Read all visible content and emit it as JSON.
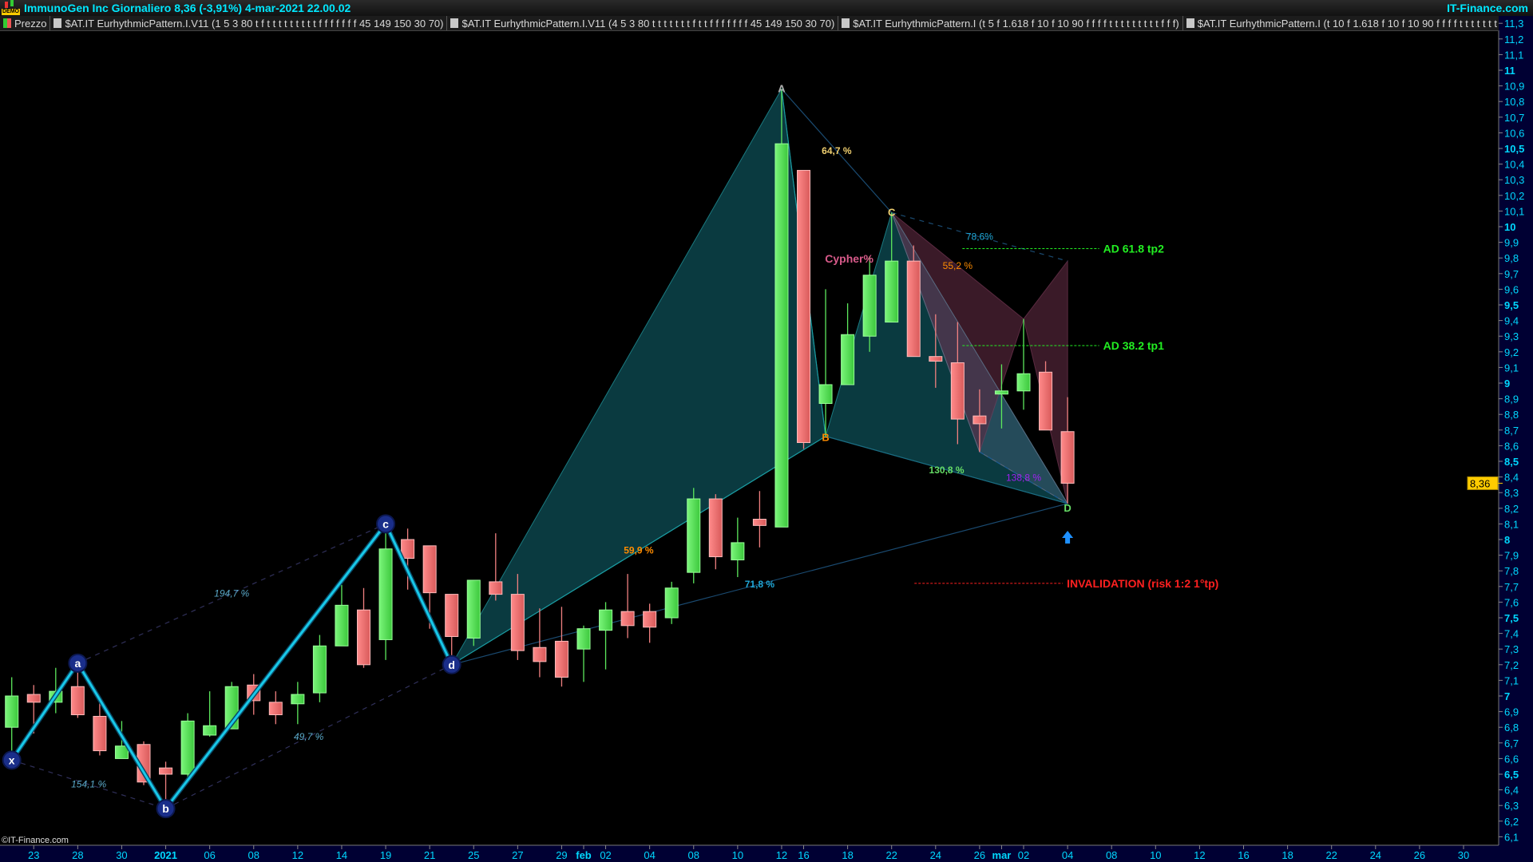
{
  "header": {
    "logo_text": "DEMO",
    "title": "ImmunoGen Inc Giornaliero 8,36 (-3,91%) 4-mar-2021 22.00.02",
    "brand": "IT-Finance.com"
  },
  "legend": [
    {
      "label": "Prezzo",
      "type": "price"
    },
    {
      "label": "$AT.IT EurhythmicPattern.I.V11 (1 5 3 80 t f t t t t t t t t t f f f f f f f 45 149 150 30 70)"
    },
    {
      "label": "$AT.IT EurhythmicPattern.I.V11 (4 5 3 80 t t t t t t t f t t f f f f f f f 45 149 150 30 70)"
    },
    {
      "label": "$AT.IT EurhythmicPattern.I (t 5 f 1.618 f 10 f 10 90 f f f f t t t t t t t t t f f f)"
    },
    {
      "label": "$AT.IT EurhythmicPattern.I (t 10 f 1.618 f 10 f 10 90 f f f f t t t t t t t t"
    }
  ],
  "watermark": "©IT-Finance.com",
  "colors": {
    "up": "#5de85d",
    "down": "#f08080",
    "axis_text": "#00d8ff",
    "axis_bg": "#000033",
    "zigzag": "#18c8e8",
    "cypher_fill": "#0a3a40",
    "pink_fill": "#3a1a28",
    "tp": "#22ee22",
    "invalidation": "#ff2020",
    "arrow": "#1e90ff",
    "last_price": "#ffcc00"
  },
  "chart_data": {
    "type": "candlestick",
    "ylim": [
      6.1,
      11.3
    ],
    "yticks": {
      "min": 6.1,
      "max": 11.3,
      "step": 0.1,
      "major": 0.5
    },
    "grid": false,
    "last_price": "8,36",
    "last_price_value": 8.36,
    "xticks": [
      {
        "label": "23",
        "date": "2020-12-23"
      },
      {
        "label": "28",
        "date": "2020-12-28"
      },
      {
        "label": "30",
        "date": "2020-12-30"
      },
      {
        "label": "2021",
        "date": "2021-01-04",
        "bold": true
      },
      {
        "label": "06",
        "date": "2021-01-06"
      },
      {
        "label": "08",
        "date": "2021-01-08"
      },
      {
        "label": "12",
        "date": "2021-01-12"
      },
      {
        "label": "14",
        "date": "2021-01-14"
      },
      {
        "label": "19",
        "date": "2021-01-19"
      },
      {
        "label": "21",
        "date": "2021-01-21"
      },
      {
        "label": "25",
        "date": "2021-01-25"
      },
      {
        "label": "27",
        "date": "2021-01-27"
      },
      {
        "label": "29",
        "date": "2021-01-29"
      },
      {
        "label": "feb",
        "date": "2021-02-01",
        "bold": true
      },
      {
        "label": "02",
        "date": "2021-02-02"
      },
      {
        "label": "04",
        "date": "2021-02-04"
      },
      {
        "label": "08",
        "date": "2021-02-08"
      },
      {
        "label": "10",
        "date": "2021-02-10"
      },
      {
        "label": "12",
        "date": "2021-02-12"
      },
      {
        "label": "16",
        "date": "2021-02-16"
      },
      {
        "label": "18",
        "date": "2021-02-18"
      },
      {
        "label": "22",
        "date": "2021-02-22"
      },
      {
        "label": "24",
        "date": "2021-02-24"
      },
      {
        "label": "26",
        "date": "2021-02-26"
      },
      {
        "label": "mar",
        "date": "2021-03-01",
        "bold": true
      },
      {
        "label": "02",
        "date": "2021-03-02"
      },
      {
        "label": "04",
        "date": "2021-03-04"
      },
      {
        "label": "08",
        "date": "2021-03-08"
      },
      {
        "label": "10",
        "date": "2021-03-10"
      },
      {
        "label": "12",
        "date": "2021-03-12"
      },
      {
        "label": "16",
        "date": "2021-03-16"
      },
      {
        "label": "18",
        "date": "2021-03-18"
      },
      {
        "label": "22",
        "date": "2021-03-22"
      },
      {
        "label": "24",
        "date": "2021-03-24"
      },
      {
        "label": "26",
        "date": "2021-03-26"
      },
      {
        "label": "30",
        "date": "2021-03-30"
      }
    ],
    "candles": [
      {
        "date": "2020-12-22",
        "o": 6.8,
        "h": 7.12,
        "l": 6.59,
        "c": 7.0
      },
      {
        "date": "2020-12-23",
        "o": 7.01,
        "h": 7.07,
        "l": 6.76,
        "c": 6.96
      },
      {
        "date": "2020-12-24",
        "o": 6.96,
        "h": 7.18,
        "l": 6.89,
        "c": 7.03
      },
      {
        "date": "2020-12-28",
        "o": 7.06,
        "h": 7.21,
        "l": 6.86,
        "c": 6.88
      },
      {
        "date": "2020-12-29",
        "o": 6.87,
        "h": 6.97,
        "l": 6.62,
        "c": 6.65
      },
      {
        "date": "2020-12-30",
        "o": 6.6,
        "h": 6.84,
        "l": 6.6,
        "c": 6.68
      },
      {
        "date": "2020-12-31",
        "o": 6.69,
        "h": 6.71,
        "l": 6.43,
        "c": 6.45
      },
      {
        "date": "2021-01-04",
        "o": 6.54,
        "h": 6.58,
        "l": 6.28,
        "c": 6.5
      },
      {
        "date": "2021-01-05",
        "o": 6.5,
        "h": 6.89,
        "l": 6.45,
        "c": 6.84
      },
      {
        "date": "2021-01-06",
        "o": 6.75,
        "h": 7.03,
        "l": 6.74,
        "c": 6.81
      },
      {
        "date": "2021-01-07",
        "o": 6.79,
        "h": 7.09,
        "l": 6.79,
        "c": 7.06
      },
      {
        "date": "2021-01-08",
        "o": 7.07,
        "h": 7.14,
        "l": 6.88,
        "c": 6.97
      },
      {
        "date": "2021-01-11",
        "o": 6.96,
        "h": 7.03,
        "l": 6.82,
        "c": 6.88
      },
      {
        "date": "2021-01-12",
        "o": 6.95,
        "h": 7.09,
        "l": 6.82,
        "c": 7.01
      },
      {
        "date": "2021-01-13",
        "o": 7.02,
        "h": 7.39,
        "l": 6.96,
        "c": 7.32
      },
      {
        "date": "2021-01-14",
        "o": 7.32,
        "h": 7.71,
        "l": 7.32,
        "c": 7.58
      },
      {
        "date": "2021-01-15",
        "o": 7.55,
        "h": 7.69,
        "l": 7.18,
        "c": 7.2
      },
      {
        "date": "2021-01-19",
        "o": 7.36,
        "h": 8.1,
        "l": 7.23,
        "c": 7.94
      },
      {
        "date": "2021-01-20",
        "o": 8.0,
        "h": 8.07,
        "l": 7.68,
        "c": 7.88
      },
      {
        "date": "2021-01-21",
        "o": 7.96,
        "h": 7.96,
        "l": 7.43,
        "c": 7.66
      },
      {
        "date": "2021-01-22",
        "o": 7.65,
        "h": 7.65,
        "l": 7.2,
        "c": 7.38
      },
      {
        "date": "2021-01-25",
        "o": 7.37,
        "h": 7.74,
        "l": 7.32,
        "c": 7.74
      },
      {
        "date": "2021-01-26",
        "o": 7.73,
        "h": 8.04,
        "l": 7.61,
        "c": 7.65
      },
      {
        "date": "2021-01-27",
        "o": 7.65,
        "h": 7.78,
        "l": 7.23,
        "c": 7.29
      },
      {
        "date": "2021-01-28",
        "o": 7.31,
        "h": 7.56,
        "l": 7.12,
        "c": 7.22
      },
      {
        "date": "2021-01-29",
        "o": 7.35,
        "h": 7.57,
        "l": 7.06,
        "c": 7.12
      },
      {
        "date": "2021-02-01",
        "o": 7.3,
        "h": 7.45,
        "l": 7.09,
        "c": 7.43
      },
      {
        "date": "2021-02-02",
        "o": 7.42,
        "h": 7.6,
        "l": 7.17,
        "c": 7.55
      },
      {
        "date": "2021-02-03",
        "o": 7.54,
        "h": 7.78,
        "l": 7.37,
        "c": 7.45
      },
      {
        "date": "2021-02-04",
        "o": 7.54,
        "h": 7.59,
        "l": 7.34,
        "c": 7.44
      },
      {
        "date": "2021-02-05",
        "o": 7.5,
        "h": 7.73,
        "l": 7.46,
        "c": 7.69
      },
      {
        "date": "2021-02-08",
        "o": 7.79,
        "h": 8.33,
        "l": 7.72,
        "c": 8.26
      },
      {
        "date": "2021-02-09",
        "o": 8.26,
        "h": 8.29,
        "l": 7.81,
        "c": 7.89
      },
      {
        "date": "2021-02-10",
        "o": 7.87,
        "h": 8.14,
        "l": 7.76,
        "c": 7.98
      },
      {
        "date": "2021-02-11",
        "o": 8.13,
        "h": 8.31,
        "l": 7.95,
        "c": 8.09
      },
      {
        "date": "2021-02-12",
        "o": 8.08,
        "h": 10.88,
        "l": 8.08,
        "c": 10.53
      },
      {
        "date": "2021-02-16",
        "o": 10.36,
        "h": 10.36,
        "l": 8.58,
        "c": 8.62
      },
      {
        "date": "2021-02-17",
        "o": 8.87,
        "h": 9.6,
        "l": 8.66,
        "c": 8.99
      },
      {
        "date": "2021-02-18",
        "o": 8.99,
        "h": 9.51,
        "l": 8.99,
        "c": 9.31
      },
      {
        "date": "2021-02-19",
        "o": 9.3,
        "h": 9.81,
        "l": 9.2,
        "c": 9.69
      },
      {
        "date": "2021-02-22",
        "o": 9.39,
        "h": 10.09,
        "l": 9.39,
        "c": 9.78
      },
      {
        "date": "2021-02-23",
        "o": 9.78,
        "h": 9.88,
        "l": 9.17,
        "c": 9.17
      },
      {
        "date": "2021-02-24",
        "o": 9.17,
        "h": 9.44,
        "l": 8.97,
        "c": 9.14
      },
      {
        "date": "2021-02-25",
        "o": 9.13,
        "h": 9.39,
        "l": 8.61,
        "c": 8.77
      },
      {
        "date": "2021-02-26",
        "o": 8.79,
        "h": 8.96,
        "l": 8.56,
        "c": 8.74
      },
      {
        "date": "2021-03-01",
        "o": 8.93,
        "h": 9.12,
        "l": 8.71,
        "c": 8.95
      },
      {
        "date": "2021-03-02",
        "o": 8.95,
        "h": 9.41,
        "l": 8.83,
        "c": 9.06
      },
      {
        "date": "2021-03-03",
        "o": 9.07,
        "h": 9.14,
        "l": 8.7,
        "c": 8.7
      },
      {
        "date": "2021-03-04",
        "o": 8.69,
        "h": 8.91,
        "l": 8.23,
        "c": 8.36
      }
    ],
    "patterns": [
      {
        "style": "zigzag",
        "points": [
          {
            "label": "x",
            "date": "2020-12-22",
            "price": 6.59
          },
          {
            "label": "a",
            "date": "2020-12-28",
            "price": 7.21
          },
          {
            "label": "b",
            "date": "2021-01-04",
            "price": 6.28
          },
          {
            "label": "c",
            "date": "2021-01-19",
            "price": 8.1
          },
          {
            "label": "d",
            "date": "2021-01-22",
            "price": 7.2
          }
        ],
        "ratios": [
          {
            "text": "154,1 %",
            "from": 0,
            "to": 2
          },
          {
            "text": "194,7 %",
            "from": 1,
            "to": 3
          },
          {
            "text": "49,7 %",
            "from": 2,
            "to": 4
          }
        ]
      },
      {
        "style": "cypher",
        "name": "Cypher%",
        "points": [
          {
            "label": "",
            "date": "2021-01-22",
            "price": 7.2
          },
          {
            "label": "A",
            "date": "2021-02-12",
            "price": 10.88
          },
          {
            "label": "B",
            "date": "2021-02-17",
            "price": 8.66
          },
          {
            "label": "C",
            "date": "2021-02-22",
            "price": 10.09
          },
          {
            "label": "D",
            "date": "2021-03-04",
            "price": 8.23
          }
        ],
        "ratios": [
          {
            "text": "59,9 %",
            "from": 0,
            "to": 2,
            "color": "#ff8c00"
          },
          {
            "text": "64,7 %",
            "from": 1,
            "to": 3,
            "color": "#f0d070"
          },
          {
            "text": "130,8 %",
            "from": 2,
            "to": 4,
            "color": "#66dd66"
          },
          {
            "text": "71,8 %",
            "from": 0,
            "to": 4,
            "color": "#20a8d8"
          }
        ]
      },
      {
        "style": "pink",
        "points": [
          {
            "date": "2021-02-22",
            "price": 10.09
          },
          {
            "date": "2021-02-26",
            "price": 8.56
          },
          {
            "date": "2021-03-02",
            "price": 9.41
          },
          {
            "date": "2021-03-04",
            "price": 9.78
          },
          {
            "date": "2021-03-04",
            "price": 8.23
          }
        ],
        "ratios": [
          {
            "text": "78,6%",
            "from": 0,
            "to": 3,
            "color": "#20a8d8"
          },
          {
            "text": "55,2 %",
            "from": 0,
            "to": 2,
            "color": "#ff8c00"
          },
          {
            "text": "138,8 %",
            "from": 1,
            "to": 4,
            "color": "#a020f0"
          }
        ]
      }
    ],
    "levels": [
      {
        "label": "AD 61.8 tp2",
        "price": 9.86,
        "kind": "tp"
      },
      {
        "label": "AD 38.2 tp1",
        "price": 9.24,
        "kind": "tp"
      },
      {
        "label": "INVALIDATION (risk 1:2 1°tp)",
        "price": 7.72,
        "kind": "invalidation"
      }
    ],
    "signal": {
      "type": "buy-arrow",
      "date": "2021-03-04",
      "price": 8.01
    }
  }
}
